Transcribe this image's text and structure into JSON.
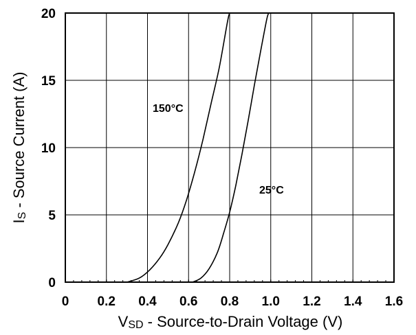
{
  "chart_data": {
    "type": "line",
    "xlabel_main": "V",
    "xlabel_sub": "SD",
    "xlabel_rest": " - Source-to-Drain Voltage (V)",
    "ylabel_main": "I",
    "ylabel_sub": "S",
    "ylabel_rest": " - Source Current (A)",
    "xlim": [
      0,
      1.6
    ],
    "ylim": [
      0,
      20
    ],
    "xticks": [
      0,
      0.2,
      0.4,
      0.6,
      0.8,
      1.0,
      1.2,
      1.4,
      1.6
    ],
    "xtick_labels": [
      "0",
      "0.2",
      "0.4",
      "0.6",
      "0.8",
      "1.0",
      "1.2",
      "1.4",
      "1.6"
    ],
    "yticks": [
      0,
      5,
      10,
      15,
      20
    ],
    "ytick_labels": [
      "0",
      "5",
      "10",
      "15",
      "20"
    ],
    "grid": true,
    "annotations": [
      "150°C",
      "25°C"
    ],
    "series": [
      {
        "name": "150°C",
        "x": [
          0.3,
          0.36,
          0.41,
          0.46,
          0.5,
          0.55,
          0.59,
          0.63,
          0.67,
          0.71,
          0.75,
          0.79,
          0.8
        ],
        "y": [
          0,
          0.3,
          0.9,
          1.8,
          2.8,
          4.4,
          6.1,
          8.2,
          10.6,
          13.3,
          16.0,
          19.4,
          20
        ]
      },
      {
        "name": "25°C",
        "x": [
          0.62,
          0.66,
          0.7,
          0.74,
          0.77,
          0.8,
          0.83,
          0.86,
          0.89,
          0.92,
          0.95,
          0.98,
          0.99
        ],
        "y": [
          0,
          0.3,
          1.0,
          2.2,
          3.6,
          5.2,
          7.2,
          9.5,
          12.0,
          14.6,
          17.1,
          19.5,
          20
        ]
      }
    ]
  }
}
